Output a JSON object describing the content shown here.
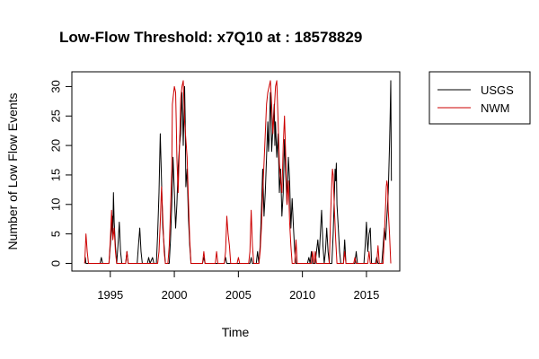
{
  "chart_data": {
    "type": "line",
    "title": "Low-Flow Threshold: x7Q10 at : 18578829",
    "xlabel": "Time",
    "ylabel": "Number of Low Flow Events",
    "xlim": [
      1992.0,
      2017.6
    ],
    "ylim": [
      -1.3,
      32.5
    ],
    "x_ticks": [
      1995,
      2000,
      2005,
      2010,
      2015
    ],
    "x_tick_labels": [
      "1995",
      "2000",
      "2005",
      "2010",
      "2015"
    ],
    "y_ticks": [
      0,
      5,
      10,
      15,
      20,
      25,
      30
    ],
    "y_tick_labels": [
      "0",
      "5",
      "10",
      "15",
      "20",
      "25",
      "30"
    ],
    "legend": {
      "position": "top-right, outside plot area",
      "boxed": true
    },
    "grid": false,
    "series": [
      {
        "name": "USGS",
        "color": "#000000",
        "points": [
          [
            1993.0,
            0
          ],
          [
            1993.05,
            1
          ],
          [
            1993.1,
            0
          ],
          [
            1994.2,
            0
          ],
          [
            1994.3,
            1
          ],
          [
            1994.4,
            0
          ],
          [
            1994.9,
            0
          ],
          [
            1995.0,
            3
          ],
          [
            1995.1,
            6
          ],
          [
            1995.15,
            8
          ],
          [
            1995.2,
            5
          ],
          [
            1995.25,
            12
          ],
          [
            1995.3,
            7
          ],
          [
            1995.4,
            3
          ],
          [
            1995.5,
            0
          ],
          [
            1995.6,
            3
          ],
          [
            1995.7,
            7
          ],
          [
            1995.8,
            2
          ],
          [
            1995.9,
            0
          ],
          [
            1996.2,
            0
          ],
          [
            1996.3,
            2
          ],
          [
            1996.4,
            0
          ],
          [
            1997.1,
            0
          ],
          [
            1997.2,
            3
          ],
          [
            1997.3,
            6
          ],
          [
            1997.4,
            2
          ],
          [
            1997.5,
            0
          ],
          [
            1997.9,
            0
          ],
          [
            1998.0,
            1
          ],
          [
            1998.1,
            0
          ],
          [
            1998.3,
            1
          ],
          [
            1998.4,
            0
          ],
          [
            1998.6,
            0
          ],
          [
            1998.7,
            5
          ],
          [
            1998.8,
            12
          ],
          [
            1998.9,
            22
          ],
          [
            1999.0,
            14
          ],
          [
            1999.1,
            6
          ],
          [
            1999.2,
            3
          ],
          [
            1999.3,
            0
          ],
          [
            1999.6,
            0
          ],
          [
            1999.7,
            4
          ],
          [
            1999.8,
            10
          ],
          [
            1999.9,
            18
          ],
          [
            2000.0,
            12
          ],
          [
            2000.1,
            6
          ],
          [
            2000.2,
            10
          ],
          [
            2000.3,
            16
          ],
          [
            2000.4,
            20
          ],
          [
            2000.5,
            22
          ],
          [
            2000.6,
            29
          ],
          [
            2000.65,
            25
          ],
          [
            2000.7,
            20
          ],
          [
            2000.8,
            30
          ],
          [
            2000.85,
            24
          ],
          [
            2000.9,
            13
          ],
          [
            2001.0,
            16
          ],
          [
            2001.1,
            8
          ],
          [
            2001.2,
            3
          ],
          [
            2001.3,
            0
          ],
          [
            2002.2,
            0
          ],
          [
            2002.3,
            1
          ],
          [
            2002.4,
            0
          ],
          [
            2003.9,
            0
          ],
          [
            2004.0,
            1
          ],
          [
            2004.1,
            0
          ],
          [
            2005.9,
            0
          ],
          [
            2006.0,
            1
          ],
          [
            2006.1,
            0
          ],
          [
            2006.4,
            0
          ],
          [
            2006.5,
            2
          ],
          [
            2006.6,
            0
          ],
          [
            2006.7,
            3
          ],
          [
            2006.8,
            9
          ],
          [
            2006.9,
            16
          ],
          [
            2007.0,
            8
          ],
          [
            2007.1,
            12
          ],
          [
            2007.2,
            18
          ],
          [
            2007.3,
            24
          ],
          [
            2007.35,
            19
          ],
          [
            2007.4,
            21
          ],
          [
            2007.5,
            29
          ],
          [
            2007.55,
            25
          ],
          [
            2007.6,
            19
          ],
          [
            2007.7,
            23
          ],
          [
            2007.8,
            27
          ],
          [
            2007.85,
            20
          ],
          [
            2007.9,
            24
          ],
          [
            2008.0,
            18
          ],
          [
            2008.1,
            22
          ],
          [
            2008.2,
            12
          ],
          [
            2008.3,
            16
          ],
          [
            2008.4,
            8
          ],
          [
            2008.5,
            12
          ],
          [
            2008.6,
            21
          ],
          [
            2008.7,
            15
          ],
          [
            2008.8,
            10
          ],
          [
            2008.9,
            18
          ],
          [
            2009.0,
            14
          ],
          [
            2009.1,
            6
          ],
          [
            2009.2,
            11
          ],
          [
            2009.3,
            6
          ],
          [
            2009.4,
            2
          ],
          [
            2009.5,
            0
          ],
          [
            2010.4,
            0
          ],
          [
            2010.5,
            1
          ],
          [
            2010.6,
            0
          ],
          [
            2010.7,
            2
          ],
          [
            2010.8,
            0
          ],
          [
            2011.0,
            0
          ],
          [
            2011.1,
            2
          ],
          [
            2011.2,
            4
          ],
          [
            2011.3,
            1
          ],
          [
            2011.4,
            5
          ],
          [
            2011.5,
            9
          ],
          [
            2011.6,
            3
          ],
          [
            2011.7,
            0
          ],
          [
            2011.8,
            2
          ],
          [
            2011.9,
            6
          ],
          [
            2012.0,
            2
          ],
          [
            2012.1,
            0
          ],
          [
            2012.3,
            0
          ],
          [
            2012.4,
            5
          ],
          [
            2012.5,
            12
          ],
          [
            2012.55,
            16
          ],
          [
            2012.6,
            14
          ],
          [
            2012.65,
            17
          ],
          [
            2012.7,
            10
          ],
          [
            2012.8,
            6
          ],
          [
            2012.9,
            2
          ],
          [
            2013.0,
            0
          ],
          [
            2013.2,
            0
          ],
          [
            2013.3,
            4
          ],
          [
            2013.4,
            0
          ],
          [
            2014.1,
            0
          ],
          [
            2014.2,
            2
          ],
          [
            2014.3,
            0
          ],
          [
            2014.8,
            0
          ],
          [
            2014.9,
            3
          ],
          [
            2015.0,
            7
          ],
          [
            2015.1,
            2
          ],
          [
            2015.2,
            5
          ],
          [
            2015.3,
            6
          ],
          [
            2015.4,
            0
          ],
          [
            2015.7,
            0
          ],
          [
            2015.8,
            1
          ],
          [
            2015.9,
            0
          ],
          [
            2016.2,
            0
          ],
          [
            2016.3,
            3
          ],
          [
            2016.4,
            6
          ],
          [
            2016.5,
            4
          ],
          [
            2016.6,
            8
          ],
          [
            2016.7,
            12
          ],
          [
            2016.8,
            20
          ],
          [
            2016.85,
            25
          ],
          [
            2016.9,
            31
          ],
          [
            2016.95,
            14
          ]
        ]
      },
      {
        "name": "NWM",
        "color": "#cc0000",
        "points": [
          [
            1993.0,
            0
          ],
          [
            1993.1,
            5
          ],
          [
            1993.2,
            2
          ],
          [
            1993.3,
            0
          ],
          [
            1994.9,
            0
          ],
          [
            1995.0,
            4
          ],
          [
            1995.1,
            9
          ],
          [
            1995.2,
            4
          ],
          [
            1995.3,
            6
          ],
          [
            1995.4,
            2
          ],
          [
            1995.5,
            0
          ],
          [
            1996.2,
            0
          ],
          [
            1996.3,
            2
          ],
          [
            1996.4,
            0
          ],
          [
            1998.7,
            0
          ],
          [
            1998.8,
            2
          ],
          [
            1998.9,
            7
          ],
          [
            1999.0,
            13
          ],
          [
            1999.1,
            8
          ],
          [
            1999.2,
            2
          ],
          [
            1999.3,
            0
          ],
          [
            1999.5,
            0
          ],
          [
            1999.6,
            3
          ],
          [
            1999.7,
            9
          ],
          [
            1999.8,
            16
          ],
          [
            1999.85,
            27
          ],
          [
            1999.9,
            28
          ],
          [
            2000.0,
            30
          ],
          [
            2000.1,
            29
          ],
          [
            2000.15,
            24
          ],
          [
            2000.2,
            18
          ],
          [
            2000.3,
            12
          ],
          [
            2000.4,
            20
          ],
          [
            2000.5,
            28
          ],
          [
            2000.6,
            30
          ],
          [
            2000.7,
            31
          ],
          [
            2000.8,
            24
          ],
          [
            2000.9,
            21
          ],
          [
            2001.0,
            18
          ],
          [
            2001.1,
            11
          ],
          [
            2001.2,
            4
          ],
          [
            2001.3,
            0
          ],
          [
            2002.2,
            0
          ],
          [
            2002.3,
            2
          ],
          [
            2002.4,
            0
          ],
          [
            2003.2,
            0
          ],
          [
            2003.3,
            2
          ],
          [
            2003.4,
            0
          ],
          [
            2003.9,
            0
          ],
          [
            2004.0,
            2
          ],
          [
            2004.1,
            8
          ],
          [
            2004.2,
            5
          ],
          [
            2004.3,
            3
          ],
          [
            2004.4,
            0
          ],
          [
            2004.9,
            0
          ],
          [
            2005.0,
            1
          ],
          [
            2005.1,
            0
          ],
          [
            2005.8,
            0
          ],
          [
            2005.9,
            2
          ],
          [
            2006.0,
            9
          ],
          [
            2006.1,
            3
          ],
          [
            2006.2,
            0
          ],
          [
            2006.6,
            0
          ],
          [
            2006.7,
            2
          ],
          [
            2006.8,
            6
          ],
          [
            2006.9,
            12
          ],
          [
            2007.0,
            17
          ],
          [
            2007.1,
            22
          ],
          [
            2007.2,
            27
          ],
          [
            2007.3,
            29
          ],
          [
            2007.4,
            30
          ],
          [
            2007.5,
            31
          ],
          [
            2007.6,
            27
          ],
          [
            2007.7,
            22
          ],
          [
            2007.8,
            26
          ],
          [
            2007.9,
            30
          ],
          [
            2008.0,
            31
          ],
          [
            2008.1,
            24
          ],
          [
            2008.2,
            17
          ],
          [
            2008.3,
            14
          ],
          [
            2008.4,
            12
          ],
          [
            2008.5,
            20
          ],
          [
            2008.6,
            25
          ],
          [
            2008.7,
            18
          ],
          [
            2008.8,
            10
          ],
          [
            2008.9,
            14
          ],
          [
            2009.0,
            7
          ],
          [
            2009.1,
            3
          ],
          [
            2009.2,
            0
          ],
          [
            2009.4,
            0
          ],
          [
            2009.5,
            4
          ],
          [
            2009.6,
            0
          ],
          [
            2010.7,
            0
          ],
          [
            2010.8,
            2
          ],
          [
            2010.9,
            0
          ],
          [
            2011.0,
            2
          ],
          [
            2011.1,
            0
          ],
          [
            2012.1,
            0
          ],
          [
            2012.2,
            8
          ],
          [
            2012.3,
            14
          ],
          [
            2012.35,
            16
          ],
          [
            2012.4,
            15
          ],
          [
            2012.5,
            9
          ],
          [
            2012.6,
            4
          ],
          [
            2012.7,
            0
          ],
          [
            2013.2,
            0
          ],
          [
            2013.3,
            2
          ],
          [
            2013.4,
            0
          ],
          [
            2014.0,
            0
          ],
          [
            2014.1,
            1
          ],
          [
            2014.2,
            0
          ],
          [
            2015.1,
            0
          ],
          [
            2015.2,
            2
          ],
          [
            2015.3,
            0
          ],
          [
            2015.8,
            0
          ],
          [
            2015.9,
            3
          ],
          [
            2016.0,
            0
          ],
          [
            2016.3,
            0
          ],
          [
            2016.4,
            5
          ],
          [
            2016.5,
            10
          ],
          [
            2016.55,
            13
          ],
          [
            2016.6,
            14
          ],
          [
            2016.65,
            13
          ],
          [
            2016.7,
            9
          ],
          [
            2016.8,
            5
          ],
          [
            2016.9,
            0
          ]
        ]
      }
    ]
  }
}
